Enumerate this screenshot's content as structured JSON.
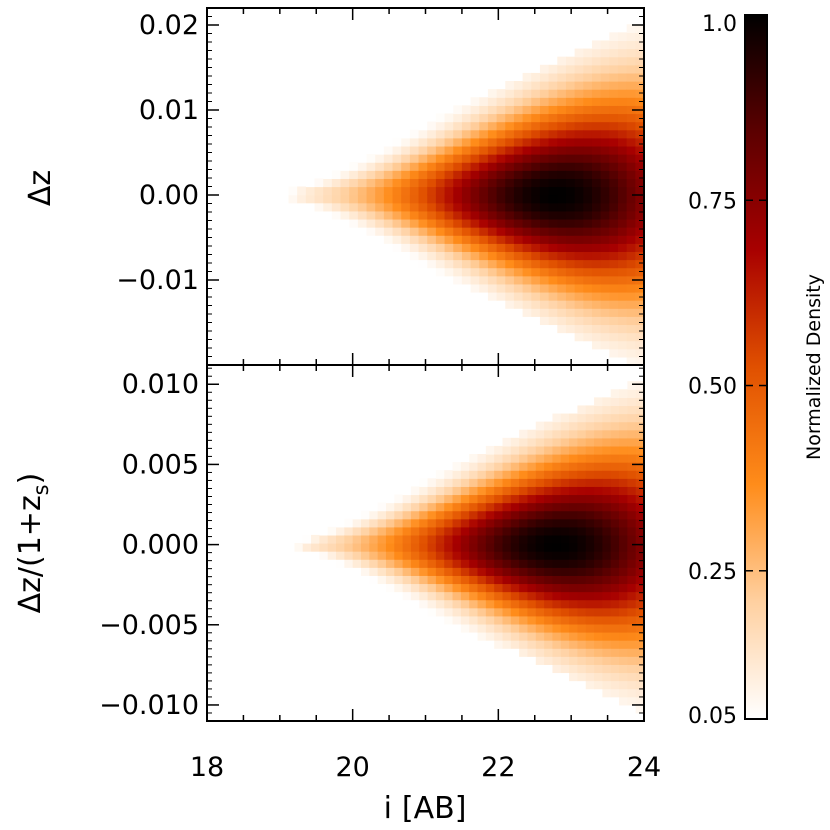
{
  "chart_data": {
    "type": "heatmap",
    "shared_x": {
      "label_main": "i",
      "label_unit": "[AB]",
      "xlim": [
        18,
        24
      ],
      "ticks": [
        18,
        20,
        22,
        24
      ],
      "tick_labels": [
        "18",
        "20",
        "22",
        "24"
      ]
    },
    "panels": [
      {
        "id": "top",
        "ylabel": "Δz",
        "ylim": [
          -0.02,
          0.022
        ],
        "yticks": [
          0.02,
          0.01,
          0.0,
          -0.01
        ],
        "ytick_labels": [
          "0.02",
          "0.01",
          "0.00",
          "−0.01"
        ],
        "density": {
          "i_start": 19.0,
          "i_end": 24.0,
          "halfwidth_at_start": 0.0003,
          "halfwidth_at_end": 0.0205,
          "peak_i": 22.8,
          "peak_value": 1.0,
          "min_value": 0.05
        }
      },
      {
        "id": "bottom",
        "ylabel": "Δz/(1+z",
        "ylabel_sub": "s",
        "ylabel_end": ")",
        "ylim": [
          -0.011,
          0.0112
        ],
        "yticks": [
          0.01,
          0.005,
          0.0,
          -0.005,
          -0.01
        ],
        "ytick_labels": [
          "0.010",
          "0.005",
          "0.000",
          "−0.005",
          "−0.010"
        ],
        "density": {
          "i_start": 19.2,
          "i_end": 24.0,
          "halfwidth_at_start": 0.0002,
          "halfwidth_at_end": 0.0105,
          "peak_i": 22.8,
          "peak_value": 1.0,
          "min_value": 0.05
        }
      }
    ],
    "colorbar": {
      "label": "Normalized Density",
      "range": [
        0.05,
        1.0
      ],
      "ticks": [
        1.0,
        0.75,
        0.5,
        0.25,
        0.05
      ],
      "tick_labels": [
        "1.0",
        "0.75",
        "0.50",
        "0.25",
        "0.05"
      ],
      "colormap": [
        "#ffffff",
        "#ffd0a0",
        "#ff8c1a",
        "#e05000",
        "#a80000",
        "#5c0000",
        "#000000"
      ]
    }
  }
}
